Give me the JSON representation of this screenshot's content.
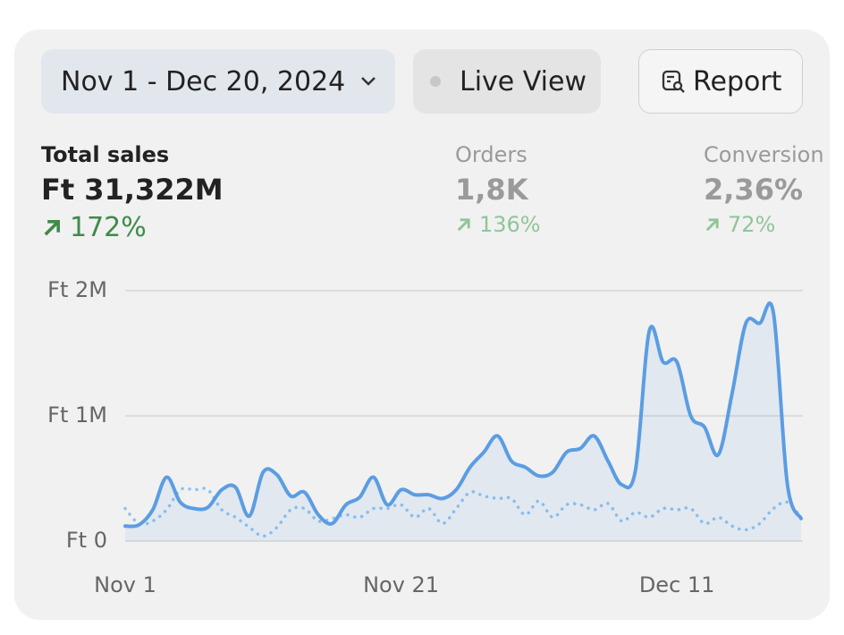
{
  "header": {
    "date_range": "Nov 1 - Dec 20, 2024",
    "live_view": "Live View",
    "report": "Report"
  },
  "metrics": [
    {
      "label": "Total sales",
      "value": "Ft 31,322M",
      "change": "172%"
    },
    {
      "label": "Orders",
      "value": "1,8K",
      "change": "136%"
    },
    {
      "label": "Conversion",
      "value": "2,36%",
      "change": "72%"
    }
  ],
  "chart_data": {
    "type": "line",
    "categories": [
      "Nov 1",
      null,
      null,
      null,
      null,
      null,
      null,
      null,
      null,
      null,
      null,
      null,
      null,
      null,
      null,
      null,
      null,
      null,
      null,
      null,
      "Nov 21",
      null,
      null,
      null,
      null,
      null,
      null,
      null,
      null,
      null,
      null,
      null,
      null,
      null,
      null,
      null,
      null,
      null,
      null,
      null,
      "Dec 11",
      null,
      null,
      null,
      null,
      null,
      null,
      null,
      null,
      null
    ],
    "series": [
      {
        "color": "#5b9de2",
        "style": "solid",
        "fill": true,
        "values": [
          120000,
          130000,
          250000,
          510000,
          310000,
          260000,
          270000,
          410000,
          430000,
          200000,
          550000,
          530000,
          360000,
          390000,
          210000,
          140000,
          290000,
          350000,
          510000,
          290000,
          410000,
          370000,
          370000,
          340000,
          410000,
          590000,
          710000,
          840000,
          640000,
          590000,
          520000,
          550000,
          710000,
          740000,
          840000,
          640000,
          450000,
          570000,
          1680000,
          1430000,
          1430000,
          1000000,
          910000,
          690000,
          1180000,
          1740000,
          1740000,
          1820000,
          460000,
          180000
        ]
      },
      {
        "color": "#8dc1ef",
        "style": "dotted",
        "fill": false,
        "values": [
          260000,
          140000,
          160000,
          250000,
          410000,
          410000,
          410000,
          250000,
          190000,
          110000,
          40000,
          110000,
          250000,
          260000,
          160000,
          180000,
          210000,
          190000,
          260000,
          260000,
          290000,
          190000,
          260000,
          140000,
          260000,
          390000,
          360000,
          340000,
          340000,
          210000,
          320000,
          190000,
          290000,
          290000,
          250000,
          300000,
          160000,
          230000,
          190000,
          260000,
          250000,
          260000,
          140000,
          190000,
          120000,
          90000,
          140000,
          260000,
          310000,
          190000
        ]
      }
    ],
    "ylim": [
      0,
      2000000
    ],
    "yticks": [
      {
        "value": 0,
        "label": "Ft 0"
      },
      {
        "value": 1000000,
        "label": "Ft 1M"
      },
      {
        "value": 2000000,
        "label": "Ft 2M"
      }
    ],
    "grid": true
  }
}
